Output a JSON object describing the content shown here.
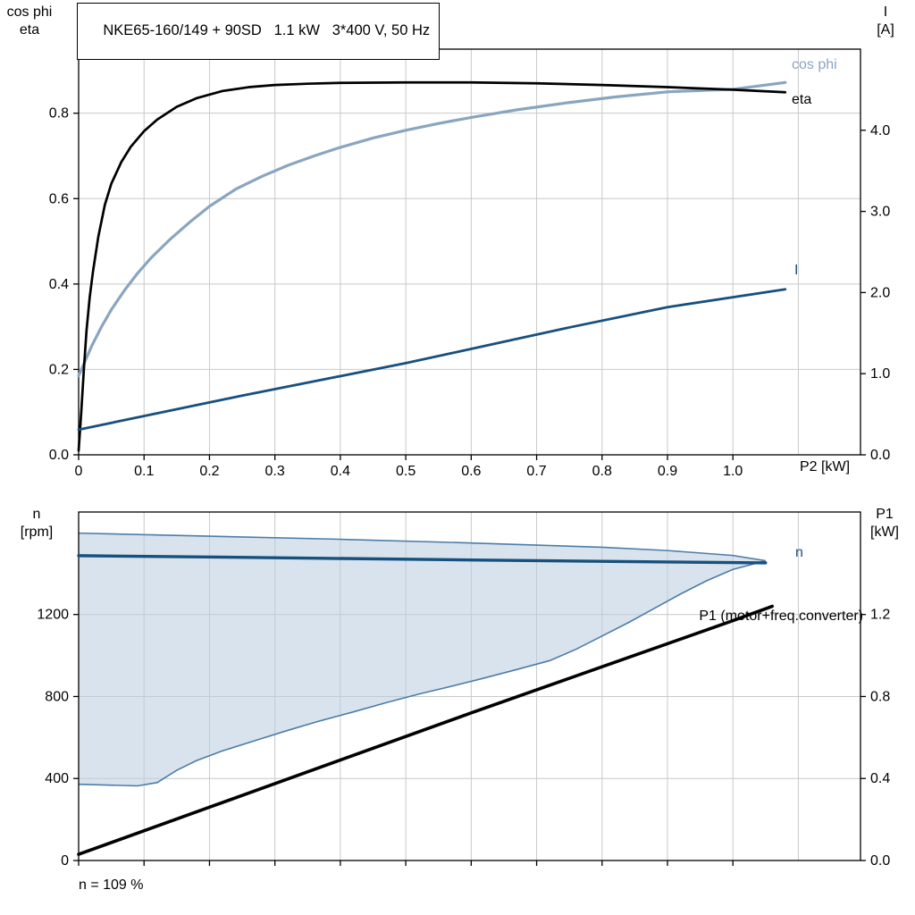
{
  "title": "NKE65-160/149 + 90SD   1.1 kW   3*400 V, 50 Hz",
  "labels": {
    "top_left_line1": "cos phi",
    "top_left_line2": "eta",
    "top_right_line1": "I",
    "top_right_line2": "[A]",
    "bottom_left_line1": "n",
    "bottom_left_line2": "[rpm]",
    "bottom_right_line1": "P1",
    "bottom_right_line2": "[kW]",
    "x_axis_label": "P2 [kW]",
    "curve_cos_phi": "cos phi",
    "curve_eta": "eta",
    "curve_current": "I",
    "curve_n": "n",
    "curve_p1": "P1 (motor+freq.converter)",
    "footnote": "n = 109 %"
  },
  "colors": {
    "eta": "#000000",
    "cos_phi": "#8aa5c0",
    "current": "#17507d",
    "n": "#17507d",
    "p1": "#000000",
    "grid": "#c9c9c9",
    "frame": "#000000",
    "area_fill": "#b8cce0",
    "area_border": "#4d7ca8"
  },
  "chart_data": [
    {
      "type": "line",
      "title": "NKE65-160/149 + 90SD   1.1 kW   3*400 V, 50 Hz",
      "x_axis": {
        "label": "P2 [kW]",
        "range": [
          0,
          1.195
        ],
        "ticks": [
          [
            0,
            "0"
          ],
          [
            0.1,
            "0.1"
          ],
          [
            0.2,
            "0.2"
          ],
          [
            0.3,
            "0.3"
          ],
          [
            0.4,
            "0.4"
          ],
          [
            0.5,
            "0.5"
          ],
          [
            0.6,
            "0.6"
          ],
          [
            0.7,
            "0.7"
          ],
          [
            0.8,
            "0.8"
          ],
          [
            0.9,
            "0.9"
          ],
          [
            1.0,
            "1.0"
          ]
        ],
        "grid": [
          0.1,
          0.2,
          0.3,
          0.4,
          0.5,
          0.6,
          0.7,
          0.8,
          0.9,
          1.0,
          1.1
        ]
      },
      "y_left": {
        "label": "cos phi / eta",
        "range": [
          0,
          0.95
        ],
        "ticks": [
          [
            0,
            "0.0"
          ],
          [
            0.2,
            "0.2"
          ],
          [
            0.4,
            "0.4"
          ],
          [
            0.6,
            "0.6"
          ],
          [
            0.8,
            "0.8"
          ]
        ],
        "grid": [
          0.2,
          0.4,
          0.6,
          0.8
        ]
      },
      "y_right": {
        "label": "I [A]",
        "range": [
          0,
          5.0
        ],
        "ticks": [
          [
            0,
            "0.0"
          ],
          [
            1,
            "1.0"
          ],
          [
            2,
            "2.0"
          ],
          [
            3,
            "3.0"
          ],
          [
            4,
            "4.0"
          ]
        ]
      },
      "series": [
        {
          "id": "cos-phi",
          "name": "cos phi",
          "axis": "left",
          "color": "#8aa5c0",
          "width": 3.2,
          "points": [
            [
              0,
              0.185
            ],
            [
              0.01,
              0.22
            ],
            [
              0.02,
              0.255
            ],
            [
              0.035,
              0.3
            ],
            [
              0.05,
              0.34
            ],
            [
              0.07,
              0.385
            ],
            [
              0.09,
              0.425
            ],
            [
              0.11,
              0.46
            ],
            [
              0.14,
              0.505
            ],
            [
              0.17,
              0.545
            ],
            [
              0.2,
              0.582
            ],
            [
              0.24,
              0.622
            ],
            [
              0.28,
              0.652
            ],
            [
              0.32,
              0.678
            ],
            [
              0.36,
              0.7
            ],
            [
              0.4,
              0.72
            ],
            [
              0.45,
              0.742
            ],
            [
              0.5,
              0.76
            ],
            [
              0.55,
              0.776
            ],
            [
              0.6,
              0.79
            ],
            [
              0.67,
              0.808
            ],
            [
              0.75,
              0.825
            ],
            [
              0.82,
              0.838
            ],
            [
              0.9,
              0.85
            ],
            [
              1.0,
              0.856
            ],
            [
              1.08,
              0.872
            ]
          ]
        },
        {
          "id": "eta",
          "name": "eta",
          "axis": "left",
          "color": "#000000",
          "width": 2.7,
          "points": [
            [
              0,
              0.01
            ],
            [
              0.004,
              0.1
            ],
            [
              0.008,
              0.2
            ],
            [
              0.012,
              0.29
            ],
            [
              0.017,
              0.37
            ],
            [
              0.022,
              0.43
            ],
            [
              0.03,
              0.51
            ],
            [
              0.04,
              0.585
            ],
            [
              0.05,
              0.635
            ],
            [
              0.065,
              0.685
            ],
            [
              0.08,
              0.722
            ],
            [
              0.1,
              0.758
            ],
            [
              0.12,
              0.785
            ],
            [
              0.15,
              0.815
            ],
            [
              0.18,
              0.835
            ],
            [
              0.22,
              0.852
            ],
            [
              0.26,
              0.861
            ],
            [
              0.3,
              0.866
            ],
            [
              0.35,
              0.869
            ],
            [
              0.4,
              0.871
            ],
            [
              0.5,
              0.872
            ],
            [
              0.6,
              0.872
            ],
            [
              0.7,
              0.87
            ],
            [
              0.8,
              0.866
            ],
            [
              0.9,
              0.861
            ],
            [
              1.0,
              0.855
            ],
            [
              1.08,
              0.849
            ]
          ]
        },
        {
          "id": "current",
          "name": "I",
          "axis": "right",
          "color": "#17507d",
          "width": 2.8,
          "points": [
            [
              0,
              0.31
            ],
            [
              0.25,
              0.73
            ],
            [
              0.5,
              1.13
            ],
            [
              0.75,
              1.57
            ],
            [
              0.9,
              1.82
            ],
            [
              1.08,
              2.04
            ]
          ]
        }
      ]
    },
    {
      "type": "line",
      "x_axis": {
        "label": "",
        "range": [
          0,
          1.195
        ],
        "ticks": [
          [
            0,
            ""
          ],
          [
            0.1,
            ""
          ],
          [
            0.2,
            ""
          ],
          [
            0.3,
            ""
          ],
          [
            0.4,
            ""
          ],
          [
            0.5,
            ""
          ],
          [
            0.6,
            ""
          ],
          [
            0.7,
            ""
          ],
          [
            0.8,
            ""
          ],
          [
            0.9,
            ""
          ],
          [
            1.0,
            ""
          ]
        ],
        "grid": [
          0.1,
          0.2,
          0.3,
          0.4,
          0.5,
          0.6,
          0.7,
          0.8,
          0.9,
          1.0,
          1.1
        ]
      },
      "y_left": {
        "label": "n [rpm]",
        "range": [
          0,
          1700
        ],
        "ticks": [
          [
            0,
            "0"
          ],
          [
            400,
            "400"
          ],
          [
            800,
            "800"
          ],
          [
            1200,
            "1200"
          ]
        ],
        "grid": [
          400,
          800,
          1200
        ]
      },
      "y_right": {
        "label": "P1 [kW]",
        "range": [
          0,
          1.7
        ],
        "ticks": [
          [
            0,
            "0.0"
          ],
          [
            0.4,
            "0.4"
          ],
          [
            0.8,
            "0.8"
          ],
          [
            1.2,
            "1.2"
          ]
        ]
      },
      "area": {
        "name": "speed-control-range",
        "fill": "#b8cce0",
        "fill_opacity": 0.55,
        "border": "#4d7ca8",
        "upper": [
          [
            0,
            1597
          ],
          [
            0.2,
            1582
          ],
          [
            0.4,
            1567
          ],
          [
            0.6,
            1549
          ],
          [
            0.8,
            1528
          ],
          [
            0.9,
            1512
          ],
          [
            1.0,
            1488
          ],
          [
            1.05,
            1462
          ]
        ],
        "lower": [
          [
            0,
            372
          ],
          [
            0.09,
            364
          ],
          [
            0.12,
            380
          ],
          [
            0.15,
            440
          ],
          [
            0.18,
            487
          ],
          [
            0.22,
            535
          ],
          [
            0.27,
            585
          ],
          [
            0.32,
            635
          ],
          [
            0.37,
            682
          ],
          [
            0.42,
            725
          ],
          [
            0.47,
            770
          ],
          [
            0.52,
            812
          ],
          [
            0.57,
            850
          ],
          [
            0.62,
            890
          ],
          [
            0.67,
            932
          ],
          [
            0.72,
            975
          ],
          [
            0.76,
            1030
          ],
          [
            0.8,
            1095
          ],
          [
            0.84,
            1160
          ],
          [
            0.88,
            1230
          ],
          [
            0.92,
            1300
          ],
          [
            0.96,
            1365
          ],
          [
            1.0,
            1420
          ],
          [
            1.05,
            1462
          ]
        ]
      },
      "series": [
        {
          "id": "n",
          "name": "n",
          "axis": "left",
          "color": "#17507d",
          "width": 3.4,
          "points": [
            [
              0,
              1487
            ],
            [
              0.3,
              1477
            ],
            [
              0.6,
              1466
            ],
            [
              0.9,
              1456
            ],
            [
              1.05,
              1452
            ]
          ]
        },
        {
          "id": "p1",
          "name": "P1 (motor+freq.converter)",
          "axis": "right",
          "color": "#000000",
          "width": 3.6,
          "points": [
            [
              0,
              0.03
            ],
            [
              0.2,
              0.26
            ],
            [
              0.4,
              0.49
            ],
            [
              0.6,
              0.72
            ],
            [
              0.8,
              0.945
            ],
            [
              1.0,
              1.17
            ],
            [
              1.06,
              1.24
            ]
          ]
        }
      ],
      "footnote": "n = 109 %"
    }
  ]
}
